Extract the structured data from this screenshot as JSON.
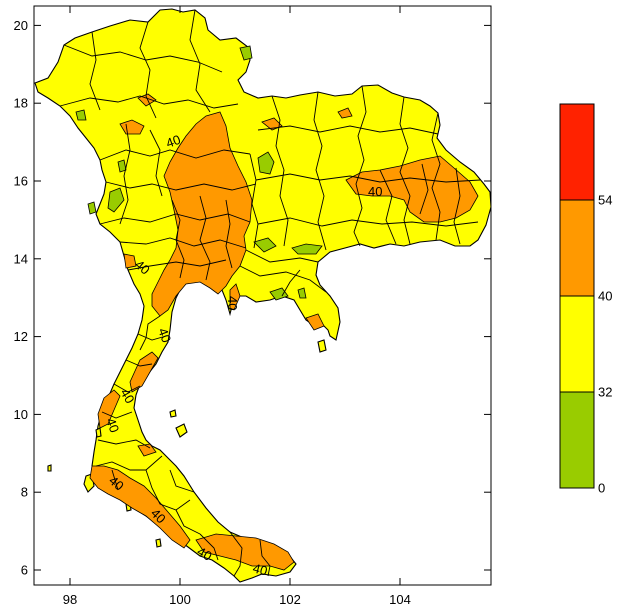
{
  "colors": {
    "green": "#99cc00",
    "yellow": "#ffff00",
    "orange": "#ff9900",
    "red": "#ff2200",
    "outline": "#000000"
  },
  "map": {
    "x_ticks": [
      "98",
      "100",
      "102",
      "104"
    ],
    "y_ticks": [
      "6",
      "8",
      "10",
      "12",
      "14",
      "16",
      "18",
      "20"
    ],
    "contour_labels": [
      "40",
      "40",
      "40",
      "40",
      "40",
      "40",
      "40",
      "40",
      "40",
      "40",
      "40"
    ]
  },
  "legend": {
    "labels": [
      "0",
      "32",
      "40",
      "54"
    ],
    "bins": [
      {
        "from": 0,
        "to": 32,
        "color": "#99cc00"
      },
      {
        "from": 32,
        "to": 40,
        "color": "#ffff00"
      },
      {
        "from": 40,
        "to": 54,
        "color": "#ff9900"
      },
      {
        "from": 54,
        "to": null,
        "color": "#ff2200"
      }
    ]
  }
}
